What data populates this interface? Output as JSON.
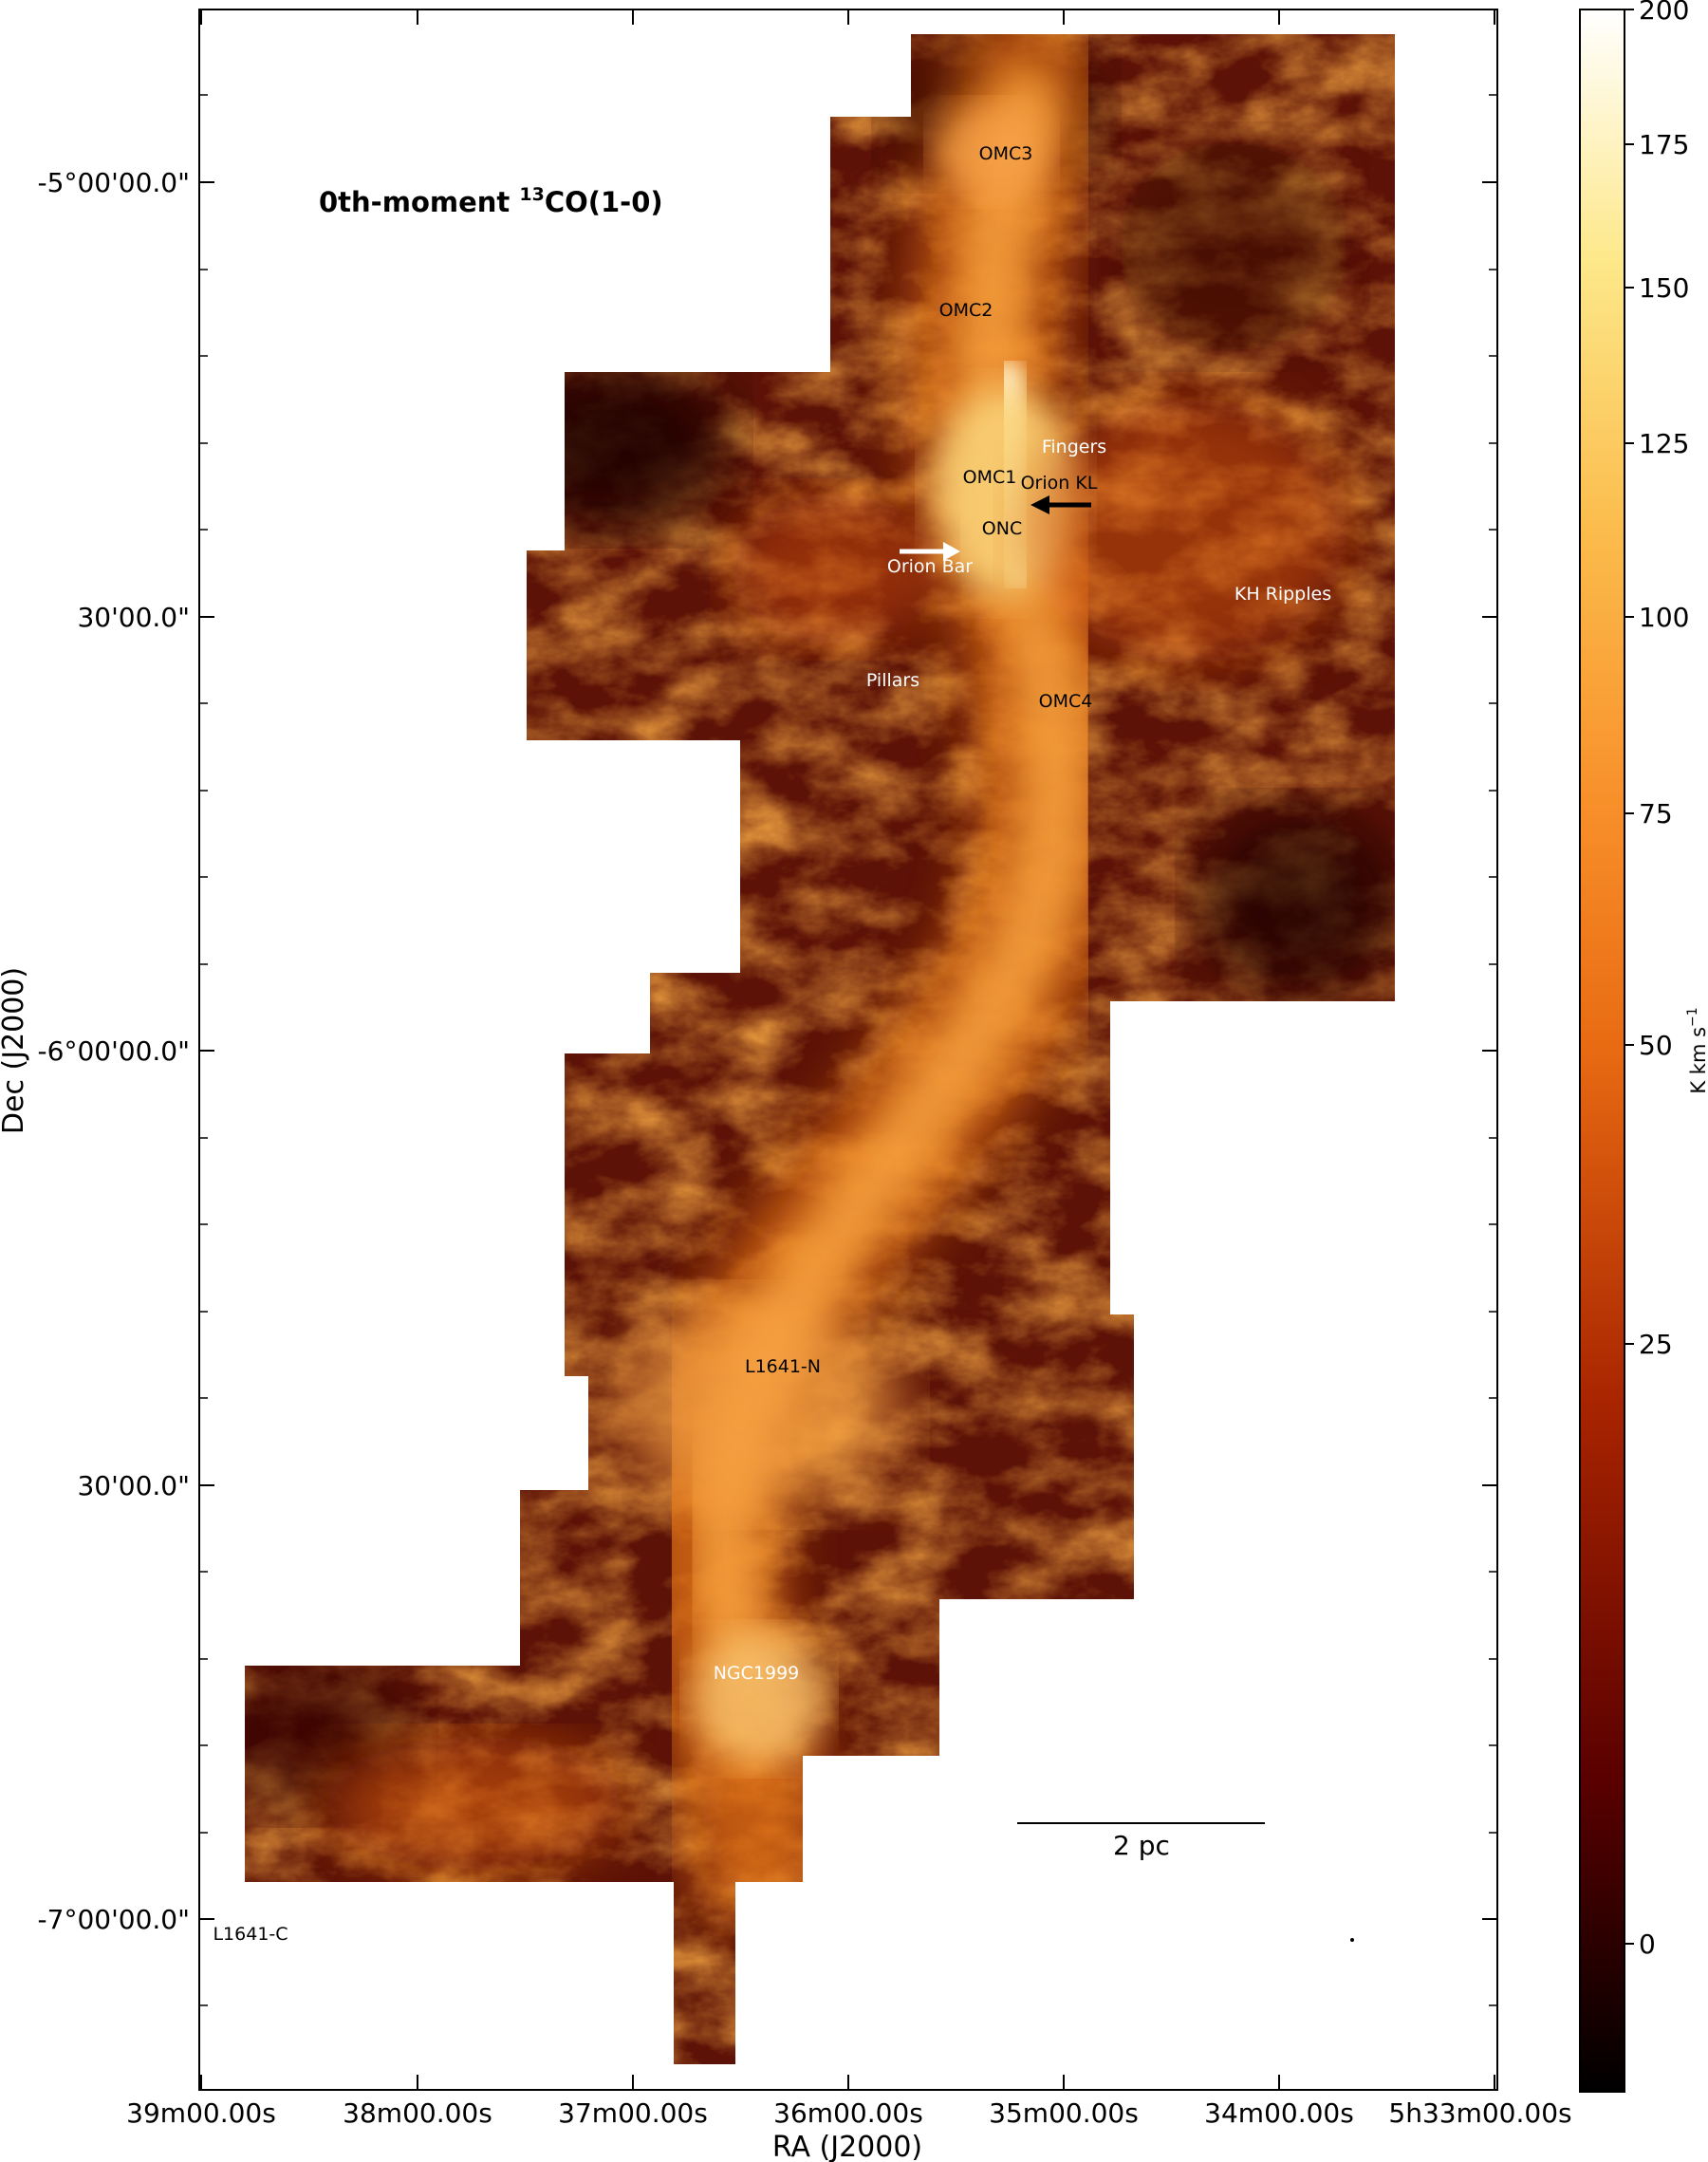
{
  "figure": {
    "title_prefix": "0th-moment ",
    "title_superscript": "13",
    "title_suffix": "CO(1-0)",
    "x_axis_label": "RA (J2000)",
    "y_axis_label": "Dec (J2000)",
    "x_ticks": [
      "39m00.00s",
      "38m00.00s",
      "37m00.00s",
      "36m00.00s",
      "35m00.00s",
      "34m00.00s",
      "5h33m00.00s"
    ],
    "y_ticks": [
      "-5°00'00.0\"",
      "30'00.0\"",
      "-6°00'00.0\"",
      "30'00.0\"",
      "-7°00'00.0\""
    ],
    "scale_bar_label": "2 pc"
  },
  "colorbar": {
    "label_prefix": "K km s",
    "label_superscript": "−1",
    "ticks": [
      "200",
      "175",
      "150",
      "125",
      "100",
      "75",
      "50",
      "25",
      "0"
    ],
    "tick_values": [
      200,
      175,
      150,
      125,
      100,
      75,
      50,
      25,
      0
    ],
    "colormap": "afmhot",
    "colors": [
      "#000000",
      "#5a0000",
      "#a32000",
      "#d85a10",
      "#f58a22",
      "#fbb84a",
      "#fde98a",
      "#ffffff"
    ]
  },
  "regions": {
    "omc3": "OMC3",
    "omc2": "OMC2",
    "fingers": "Fingers",
    "omc1": "OMC1",
    "orion_kl": "Orion KL",
    "onc": "ONC",
    "orion_bar": "Orion Bar",
    "kh_ripples": "KH Ripples",
    "pillars": "Pillars",
    "omc4": "OMC4",
    "l1641_n": "L1641-N",
    "ngc1999": "NGC1999",
    "l1641_c": "L1641-C"
  }
}
